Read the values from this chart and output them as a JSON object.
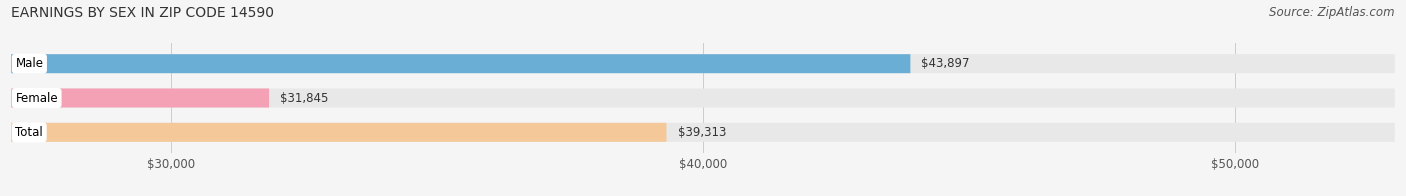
{
  "title": "EARNINGS BY SEX IN ZIP CODE 14590",
  "source": "Source: ZipAtlas.com",
  "categories": [
    "Male",
    "Female",
    "Total"
  ],
  "values": [
    43897,
    31845,
    39313
  ],
  "bar_colors": [
    "#6aaed6",
    "#f4a0b5",
    "#f5c899"
  ],
  "bar_bg_color": "#e8e8e8",
  "value_labels": [
    "$43,897",
    "$31,845",
    "$39,313"
  ],
  "xmin": 27000,
  "xmax": 53000,
  "xticks": [
    30000,
    40000,
    50000
  ],
  "xtick_labels": [
    "$30,000",
    "$40,000",
    "$50,000"
  ],
  "title_fontsize": 10,
  "source_fontsize": 8.5,
  "label_fontsize": 8.5,
  "value_fontsize": 8.5,
  "bar_height": 0.55,
  "background_color": "#f5f5f5"
}
